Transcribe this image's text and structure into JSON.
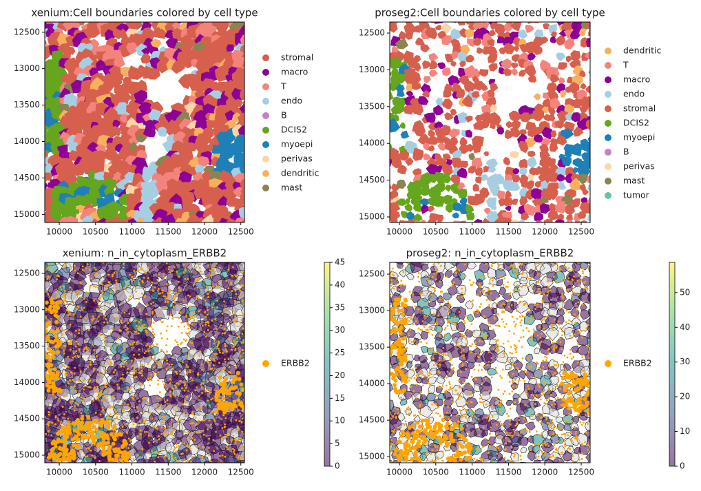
{
  "chart_data": [
    {
      "type": "spatial",
      "title": "xenium:Cell boundaries colored by cell type",
      "xlim": [
        9800,
        12550
      ],
      "ylim": [
        15110,
        12360
      ],
      "xticks": [
        10000,
        10500,
        11000,
        11500,
        12000,
        12500
      ],
      "yticks": [
        12500,
        13000,
        13500,
        14000,
        14500,
        15000
      ],
      "legend": [
        {
          "name": "stromal",
          "color": "#d6604d"
        },
        {
          "name": "macro",
          "color": "#8e0196"
        },
        {
          "name": "T",
          "color": "#f4837b"
        },
        {
          "name": "endo",
          "color": "#a6cee3"
        },
        {
          "name": "B",
          "color": "#c283c2"
        },
        {
          "name": "DCIS2",
          "color": "#66a61e"
        },
        {
          "name": "myoepi",
          "color": "#1f80b8"
        },
        {
          "name": "perivas",
          "color": "#fdd5a6"
        },
        {
          "name": "dendritic",
          "color": "#f8b05f"
        },
        {
          "name": "mast",
          "color": "#8c8450"
        }
      ]
    },
    {
      "type": "spatial",
      "title": "proseg2:Cell boundaries colored by cell type",
      "xlim": [
        9867,
        12623
      ],
      "ylim": [
        15075,
        12350
      ],
      "xticks": [
        10000,
        10500,
        11000,
        11500,
        12000,
        12500
      ],
      "yticks": [
        12500,
        13000,
        13500,
        14000,
        14500,
        15000
      ],
      "legend": [
        {
          "name": "dendritic",
          "color": "#f8b05f"
        },
        {
          "name": "T",
          "color": "#f4837b"
        },
        {
          "name": "macro",
          "color": "#8e0196"
        },
        {
          "name": "endo",
          "color": "#a6cee3"
        },
        {
          "name": "stromal",
          "color": "#d6604d"
        },
        {
          "name": "DCIS2",
          "color": "#66a61e"
        },
        {
          "name": "myoepi",
          "color": "#1f80b8"
        },
        {
          "name": "B",
          "color": "#c283c2"
        },
        {
          "name": "perivas",
          "color": "#fdd5a6"
        },
        {
          "name": "mast",
          "color": "#8c8450"
        },
        {
          "name": "tumor",
          "color": "#66c2a5"
        }
      ]
    },
    {
      "type": "spatial",
      "title": "xenium: n_in_cytoplasm_ERBB2",
      "xlim": [
        9800,
        12550
      ],
      "ylim": [
        15104,
        12349
      ],
      "xticks": [
        10000,
        10500,
        11000,
        11500,
        12000,
        12500
      ],
      "yticks": [
        12500,
        13000,
        13500,
        14000,
        14500,
        15000
      ],
      "legend": [
        {
          "name": "ERBB2",
          "color": "#ffa500"
        }
      ],
      "colorbar": {
        "colormap": "viridis",
        "lim": [
          0,
          45
        ],
        "ticks": [
          0,
          5,
          10,
          15,
          20,
          25,
          30,
          35,
          40,
          45
        ]
      }
    },
    {
      "type": "spatial",
      "title": "proseg2: n_in_cytoplasm_ERBB2",
      "xlim": [
        9867,
        12623
      ],
      "ylim": [
        15083,
        12339
      ],
      "xticks": [
        10000,
        10500,
        11000,
        11500,
        12000,
        12500
      ],
      "yticks": [
        12500,
        13000,
        13500,
        14000,
        14500,
        15000
      ],
      "legend": [
        {
          "name": "ERBB2",
          "color": "#ffa500"
        }
      ],
      "colorbar": {
        "colormap": "viridis",
        "lim": [
          0,
          58.7
        ],
        "ticks": [
          0,
          10,
          20,
          30,
          40,
          50
        ]
      }
    }
  ]
}
